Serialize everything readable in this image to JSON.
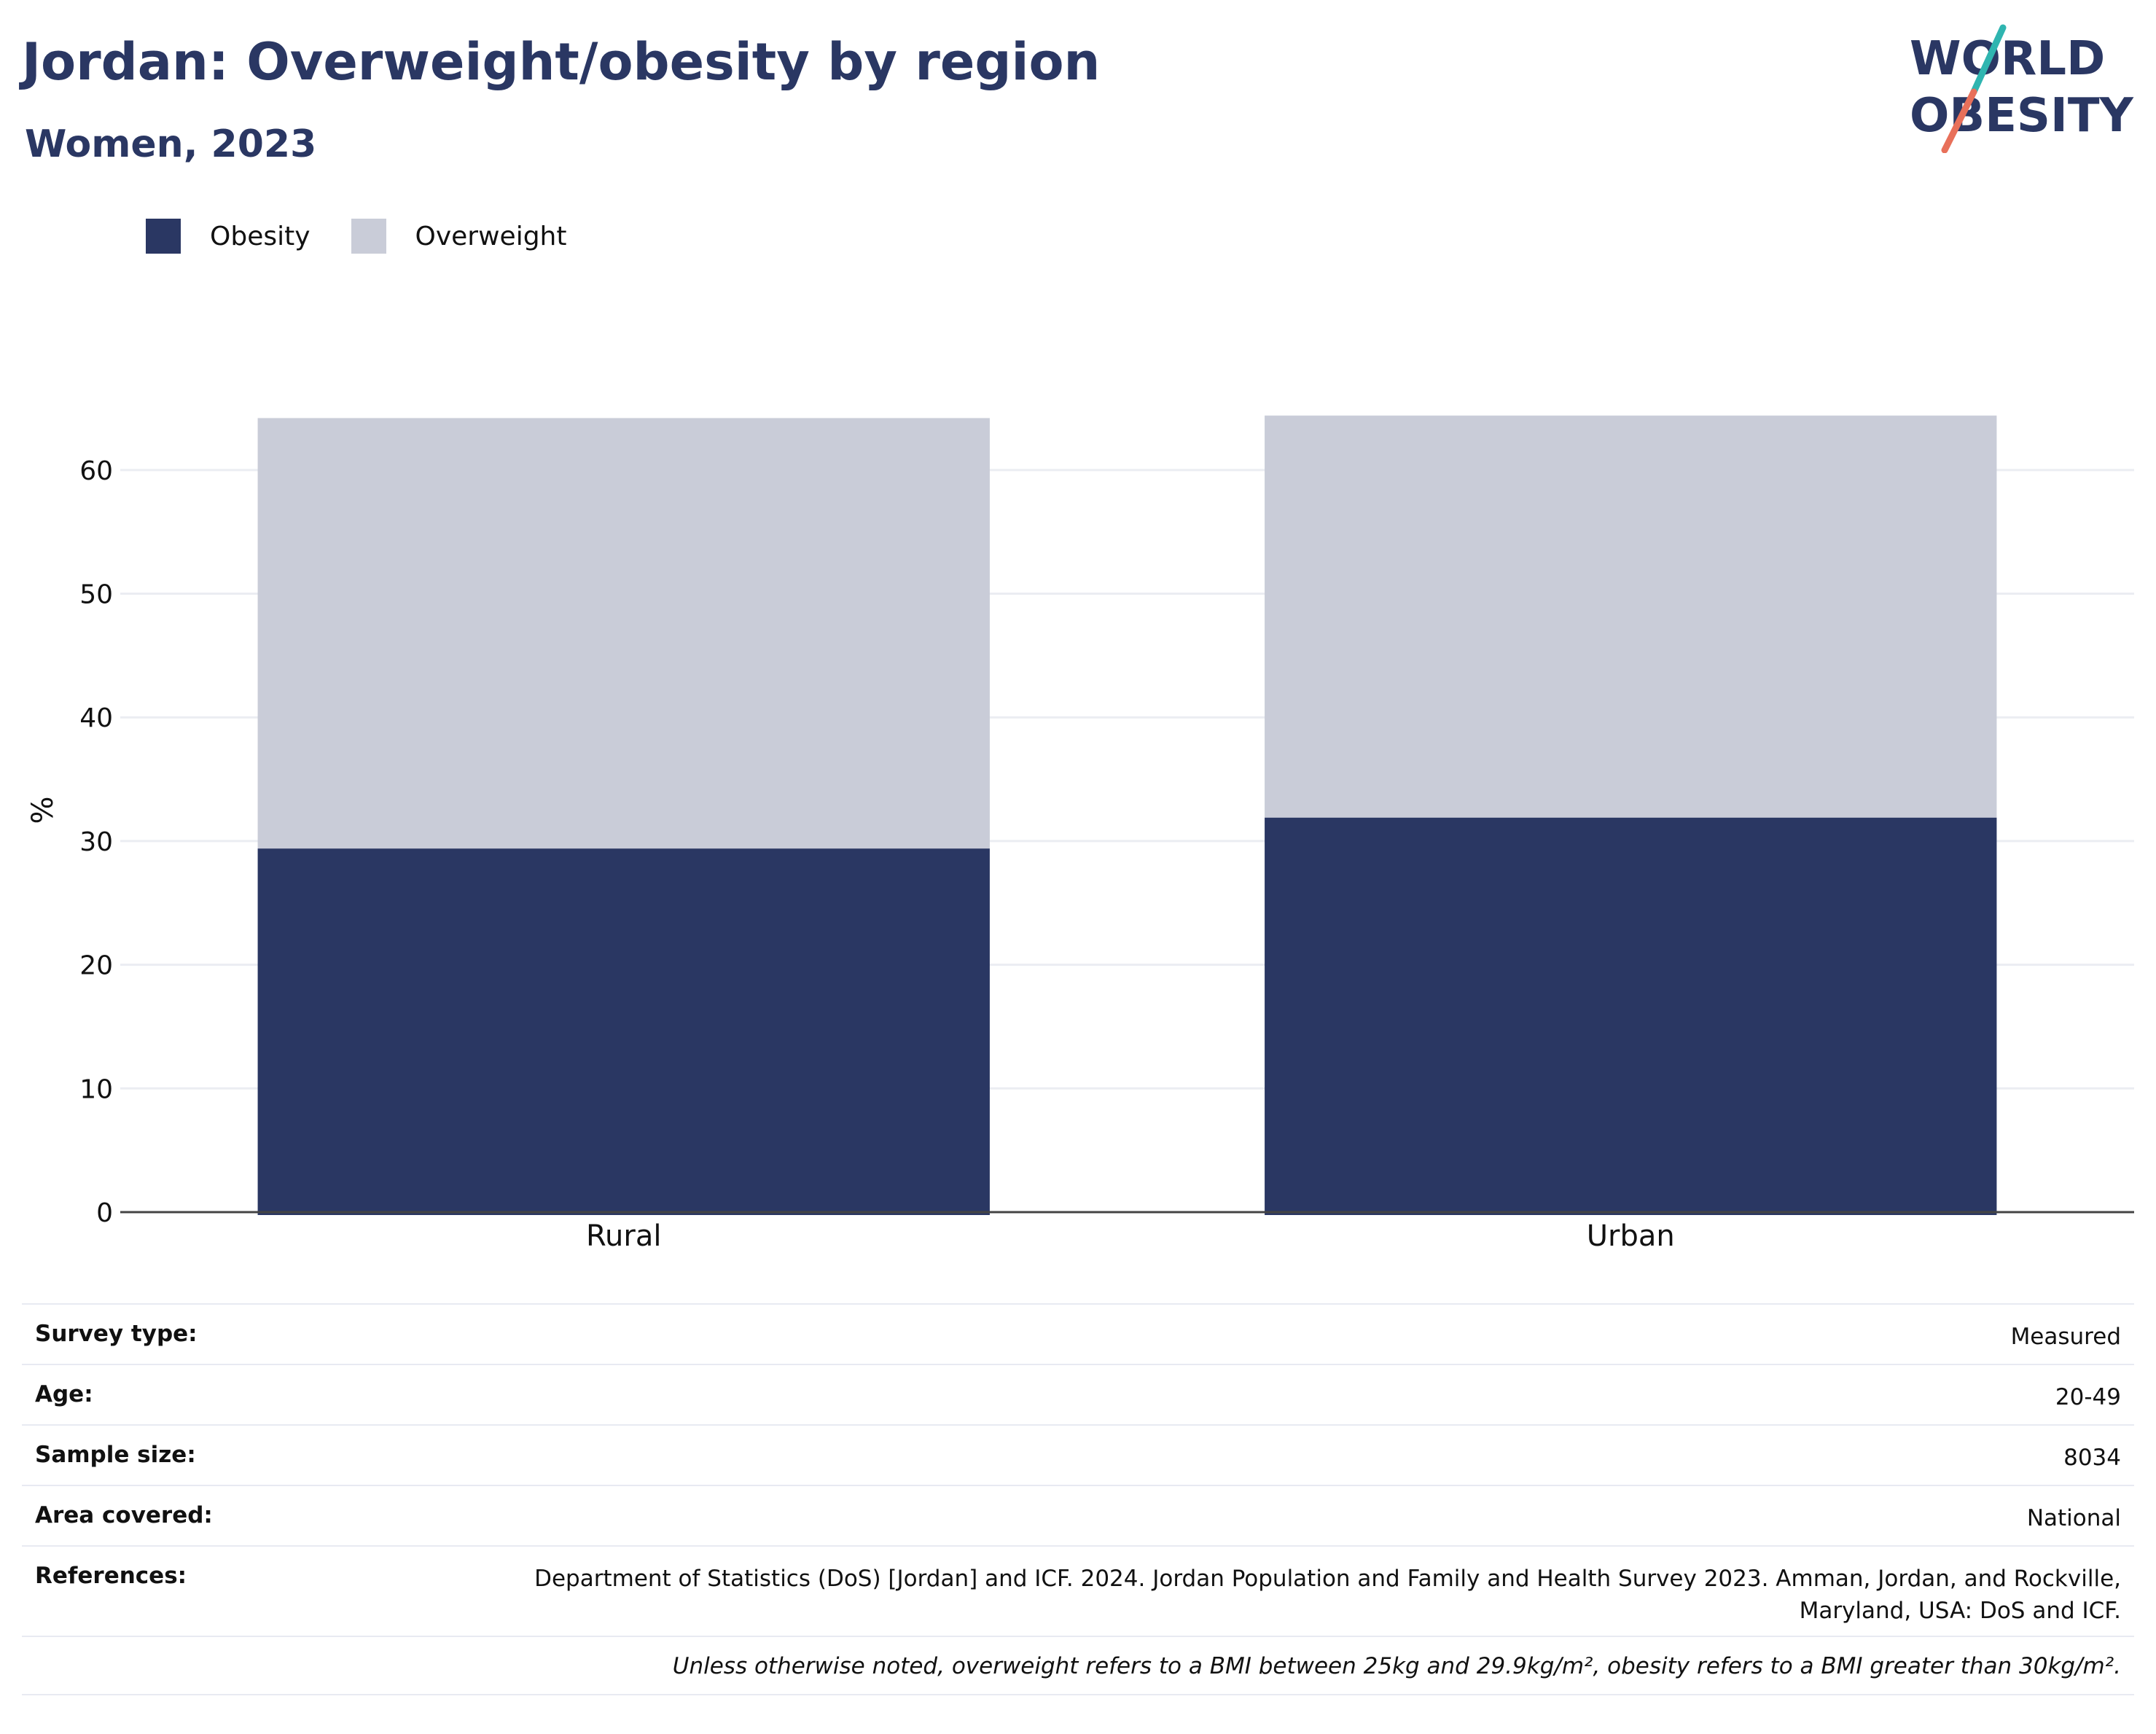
{
  "header": {
    "title": "Jordan: Overweight/obesity by region",
    "subtitle": "Women, 2023"
  },
  "logo": {
    "line1": "WORLD",
    "line2": "OBESITY",
    "accent_colors": [
      "#2fb5b0",
      "#e8705a"
    ]
  },
  "legend": [
    {
      "label": "Obesity",
      "color": "#2a3763"
    },
    {
      "label": "Overweight",
      "color": "#c9ccd8"
    }
  ],
  "chart_data": {
    "type": "bar",
    "stacked": true,
    "categories": [
      "Rural",
      "Urban"
    ],
    "series": [
      {
        "name": "Obesity",
        "color": "#2a3763",
        "values": [
          29.4,
          31.9
        ]
      },
      {
        "name": "Overweight",
        "color": "#c9ccd8",
        "values": [
          34.8,
          32.5
        ]
      }
    ],
    "ylabel": "%",
    "xlabel": "",
    "ylim": [
      0,
      65
    ],
    "yticks": [
      0,
      10,
      20,
      30,
      40,
      50,
      60
    ],
    "grid": true,
    "legend_position": "top-left"
  },
  "info": {
    "rows": [
      {
        "key": "Survey type:",
        "value": "Measured"
      },
      {
        "key": "Age:",
        "value": "20-49"
      },
      {
        "key": "Sample size:",
        "value": "8034"
      },
      {
        "key": "Area covered:",
        "value": "National"
      },
      {
        "key": "References:",
        "value": "Department of Statistics (DoS) [Jordan] and ICF. 2024. Jordan Population and Family and Health Survey 2023. Amman, Jordan, and Rockville, Maryland, USA: DoS and ICF."
      }
    ],
    "note": "Unless otherwise noted, overweight refers to a BMI between 25kg and 29.9kg/m², obesity refers to a BMI greater than 30kg/m²."
  }
}
